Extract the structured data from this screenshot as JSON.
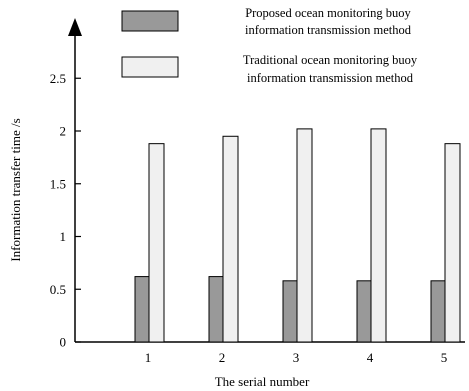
{
  "chart_data": {
    "type": "bar",
    "title": "",
    "xlabel": "The serial number",
    "ylabel": "Information transfer time /s",
    "categories": [
      "1",
      "2",
      "3",
      "4",
      "5"
    ],
    "ylim": [
      0,
      2.8
    ],
    "yticks": [
      "0",
      "0.5",
      "1",
      "1.5",
      "2",
      "2.5"
    ],
    "grid": false,
    "legend_position": "top",
    "series": [
      {
        "name_lines": [
          "Proposed ocean monitoring buoy",
          "information transmission method"
        ],
        "color": "#999999",
        "values": [
          0.62,
          0.62,
          0.58,
          0.58,
          0.58
        ]
      },
      {
        "name_lines": [
          "Traditional ocean monitoring buoy",
          "information transmission method"
        ],
        "color": "#f0f0f0",
        "values": [
          1.88,
          1.95,
          2.02,
          2.02,
          1.88
        ]
      }
    ]
  }
}
